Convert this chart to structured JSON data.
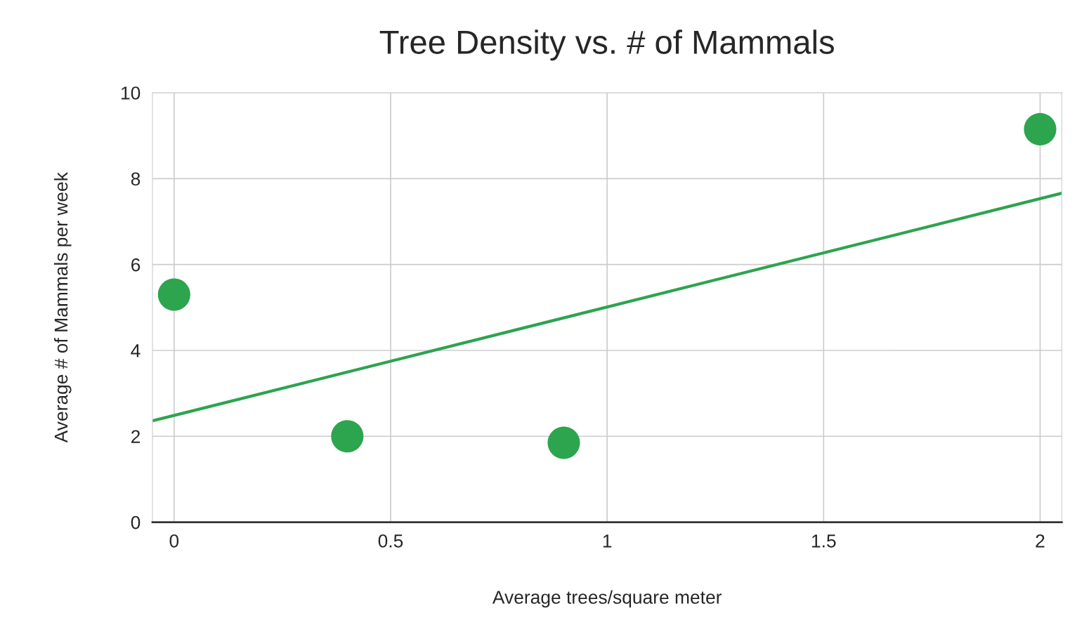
{
  "chart_data": {
    "type": "scatter",
    "title": "Tree Density vs. # of Mammals",
    "xlabel": "Average trees/square meter",
    "ylabel": "Average # of Mammals per week",
    "series": [
      {
        "color": "#2da44e",
        "marker": "circle",
        "x": [
          0,
          0.4,
          0.9,
          2
        ],
        "values": [
          5.3,
          2.0,
          1.85,
          9.15
        ]
      },
      {
        "type": "line",
        "color": "#2da44e",
        "marker": "none",
        "line_style": "solid",
        "x": [
          -0.05,
          2.05
        ],
        "values": [
          2.36,
          7.66
        ]
      }
    ],
    "xlim": [
      -0.05,
      2.05
    ],
    "xticks": [
      0,
      0.5,
      1,
      1.5,
      2
    ],
    "ylim": [
      0,
      10
    ],
    "yticks": [
      0,
      2,
      4,
      6,
      8,
      10
    ],
    "grid": true
  }
}
